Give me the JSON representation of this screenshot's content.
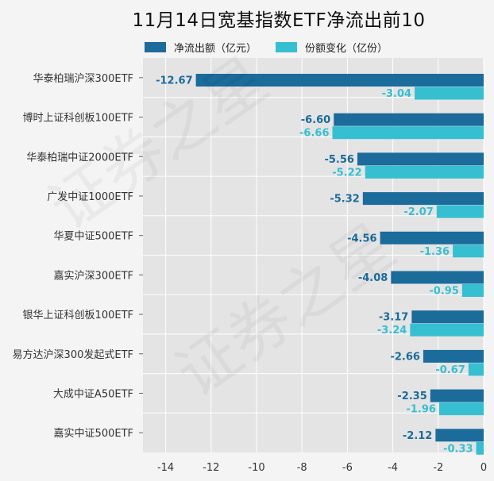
{
  "title": "11月14日宽基指数ETF净流出前10",
  "colors": {
    "net_outflow": "#1b6b9b",
    "share_change": "#36bfd1",
    "plot_bg": "#e4e4e4",
    "page_bg": "#f4f4f4"
  },
  "chart_data": {
    "type": "bar",
    "orientation": "horizontal",
    "categories": [
      "华泰柏瑞沪深300ETF",
      "博时上证科创板100ETF",
      "华泰柏瑞中证2000ETF",
      "广发中证1000ETF",
      "华夏中证500ETF",
      "嘉实沪深300ETF",
      "银华上证科创板100ETF",
      "易方达沪深300发起式ETF",
      "大成中证A50ETF",
      "嘉实中证500ETF"
    ],
    "series": [
      {
        "name": "净流出额（亿元）",
        "values": [
          -12.67,
          -6.6,
          -5.56,
          -5.32,
          -4.56,
          -4.08,
          -3.17,
          -2.66,
          -2.35,
          -2.12
        ],
        "labels": [
          "-12.67",
          "-6.60",
          "-5.56",
          "-5.32",
          "-4.56",
          "-4.08",
          "-3.17",
          "-2.66",
          "-2.35",
          "-2.12"
        ]
      },
      {
        "name": "份额变化（亿份）",
        "values": [
          -3.04,
          -6.66,
          -5.22,
          -2.07,
          -1.36,
          -0.95,
          -3.24,
          -0.67,
          -1.96,
          -0.33
        ],
        "labels": [
          "-3.04",
          "-6.66",
          "-5.22",
          "-2.07",
          "-1.36",
          "-0.95",
          "-3.24",
          "-0.67",
          "-1.96",
          "-0.33"
        ]
      }
    ],
    "xlim": [
      -15,
      0
    ],
    "xticks": [
      -14,
      -12,
      -10,
      -8,
      -6,
      -4,
      -2,
      0
    ],
    "xtick_labels": [
      "-14",
      "-12",
      "-10",
      "-8",
      "-6",
      "-4",
      "-2",
      "0"
    ],
    "grid": true,
    "legend_position": "top"
  },
  "watermark": "证券之星"
}
